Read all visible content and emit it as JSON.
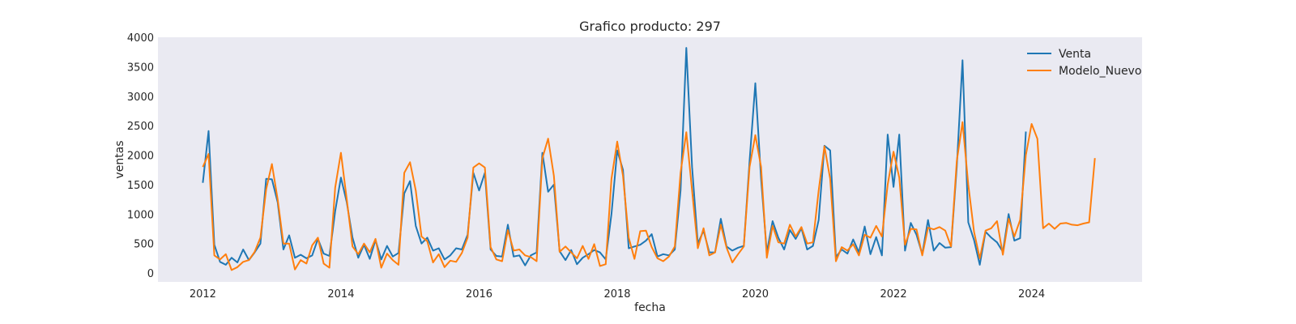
{
  "chart_data": {
    "type": "line",
    "title": "Grafico producto: 297",
    "xlabel": "fecha",
    "ylabel": "ventas",
    "xlim": [
      2011.35,
      2025.6
    ],
    "ylim": [
      -150,
      4000
    ],
    "x_ticks": [
      2012,
      2014,
      2016,
      2018,
      2020,
      2022,
      2024
    ],
    "y_ticks": [
      0,
      500,
      1000,
      1500,
      2000,
      2500,
      3000,
      3500,
      4000
    ],
    "grid": false,
    "legend_position": "top-right",
    "background": "#eaeaf2",
    "x_start": 2012.0,
    "x_step_months": 1,
    "series": [
      {
        "name": "Venta",
        "color": "#1f77b4",
        "values": [
          1530,
          2410,
          480,
          190,
          140,
          260,
          180,
          400,
          220,
          350,
          500,
          1600,
          1590,
          1200,
          400,
          640,
          260,
          310,
          250,
          300,
          580,
          330,
          290,
          1050,
          1620,
          1200,
          600,
          260,
          480,
          240,
          560,
          230,
          460,
          280,
          340,
          1350,
          1560,
          800,
          500,
          600,
          380,
          420,
          230,
          300,
          420,
          400,
          650,
          1700,
          1400,
          1700,
          400,
          290,
          280,
          820,
          280,
          300,
          130,
          300,
          350,
          2040,
          1380,
          1500,
          370,
          220,
          390,
          150,
          260,
          320,
          390,
          350,
          230,
          1000,
          2080,
          1750,
          420,
          450,
          480,
          550,
          660,
          280,
          320,
          300,
          400,
          1400,
          3820,
          1800,
          500,
          720,
          350,
          350,
          920,
          450,
          380,
          430,
          460,
          1900,
          3220,
          1600,
          350,
          880,
          600,
          400,
          730,
          580,
          760,
          400,
          460,
          900,
          2160,
          2080,
          270,
          400,
          330,
          570,
          350,
          790,
          320,
          610,
          300,
          2350,
          1460,
          2350,
          380,
          850,
          650,
          320,
          900,
          380,
          510,
          430,
          440,
          1800,
          3610,
          860,
          560,
          140,
          700,
          600,
          520,
          360,
          1000,
          550,
          590,
          2400
        ]
      },
      {
        "name": "Modelo_Nuevo",
        "color": "#ff7f0e",
        "values": [
          1800,
          2020,
          300,
          230,
          320,
          50,
          100,
          190,
          220,
          360,
          600,
          1420,
          1850,
          1250,
          500,
          500,
          60,
          220,
          160,
          470,
          600,
          160,
          90,
          1450,
          2040,
          1250,
          450,
          320,
          500,
          350,
          580,
          90,
          330,
          220,
          140,
          1700,
          1880,
          1400,
          620,
          540,
          180,
          320,
          100,
          210,
          190,
          340,
          600,
          1790,
          1860,
          1790,
          440,
          230,
          200,
          730,
          380,
          400,
          300,
          270,
          200,
          1950,
          2280,
          1650,
          360,
          450,
          350,
          250,
          460,
          240,
          490,
          120,
          150,
          1600,
          2230,
          1650,
          600,
          240,
          710,
          720,
          440,
          250,
          200,
          280,
          450,
          1700,
          2390,
          1400,
          420,
          760,
          300,
          350,
          820,
          430,
          180,
          320,
          450,
          1800,
          2340,
          1800,
          260,
          800,
          520,
          500,
          820,
          620,
          780,
          500,
          520,
          1400,
          2150,
          1600,
          200,
          440,
          380,
          490,
          300,
          650,
          600,
          800,
          620,
          1500,
          2060,
          1620,
          480,
          750,
          740,
          300,
          770,
          740,
          780,
          720,
          450,
          1900,
          2560,
          1500,
          700,
          250,
          720,
          760,
          880,
          310,
          920,
          620,
          900,
          2000,
          2530,
          2280,
          760,
          840,
          750,
          840,
          850,
          820,
          810,
          840,
          860,
          1950
        ]
      }
    ]
  }
}
